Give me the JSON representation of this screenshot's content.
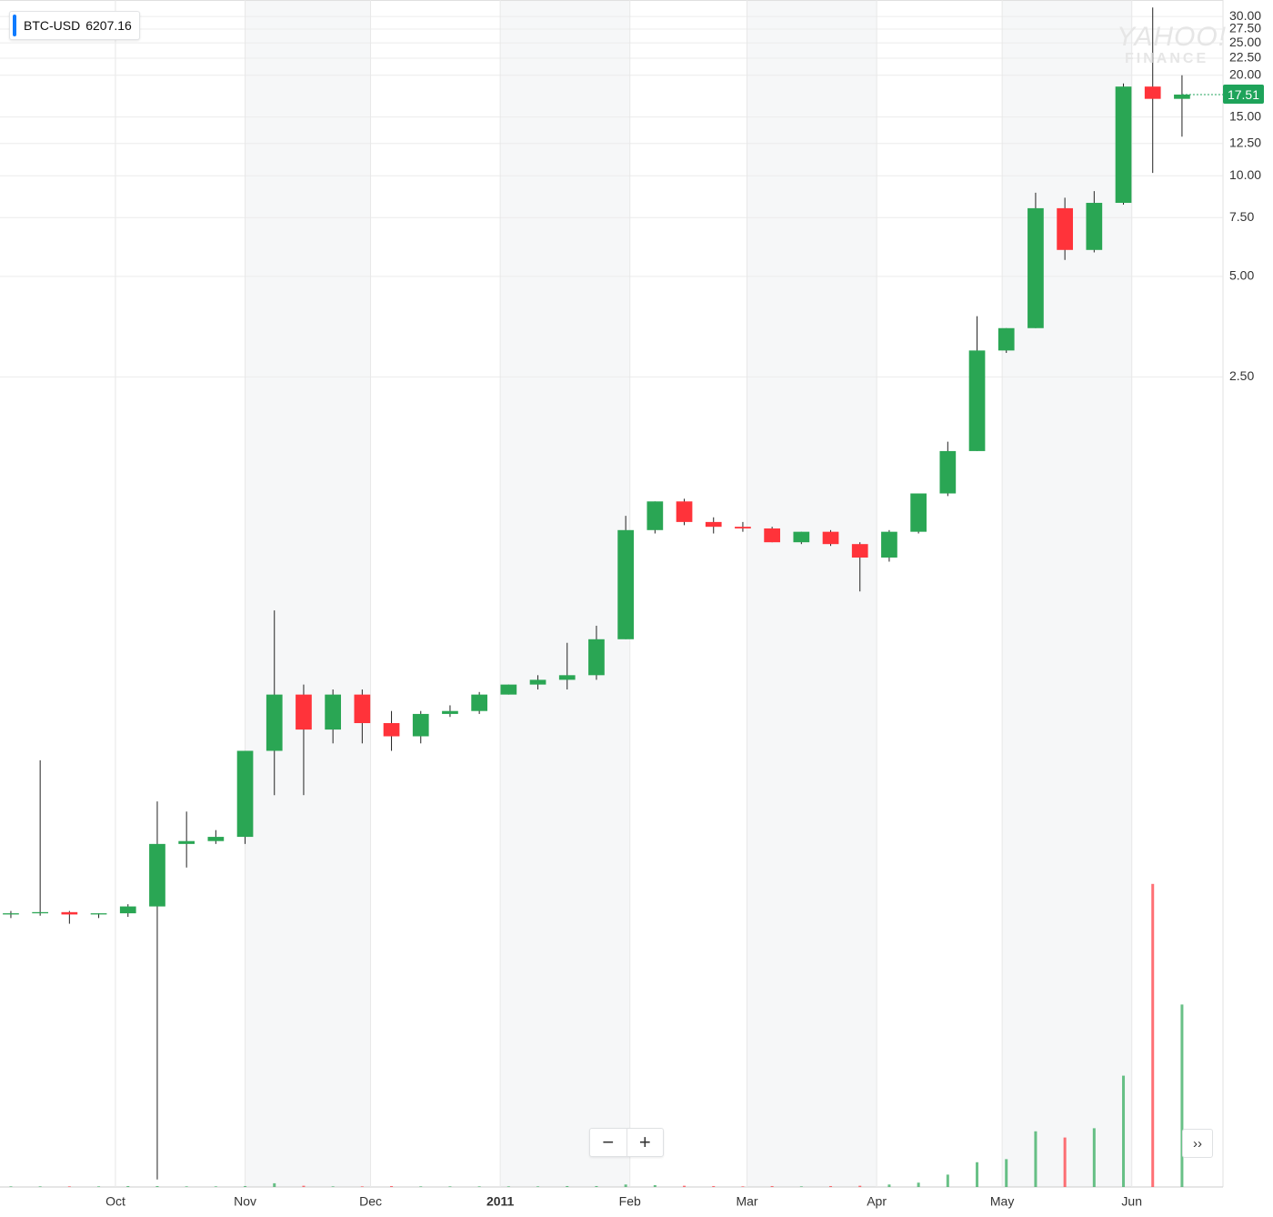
{
  "chart_data": {
    "type": "candlestick",
    "symbol": "BTC-USD",
    "symbol_value": "6207.16",
    "watermark": [
      "YAHOO!",
      "FINANCE"
    ],
    "log_scale": true,
    "grid": true,
    "up_color": "#2aa654",
    "down_color": "#ff333a",
    "last_price": 17.51,
    "xlim": [
      -27.6,
      264.8
    ],
    "xticks": [
      {
        "value": 0,
        "label": "Oct"
      },
      {
        "value": 31,
        "label": "Nov"
      },
      {
        "value": 61,
        "label": "Dec"
      },
      {
        "value": 92,
        "label": "2011"
      },
      {
        "value": 123,
        "label": "Feb"
      },
      {
        "value": 151,
        "label": "Mar"
      },
      {
        "value": 182,
        "label": "Apr"
      },
      {
        "value": 212,
        "label": "May"
      },
      {
        "value": 243,
        "label": "Jun"
      }
    ],
    "ylim": [
      0.0094,
      33.6
    ],
    "yticks": [
      {
        "value": 30,
        "label": "30.00"
      },
      {
        "value": 27.5,
        "label": "27.50"
      },
      {
        "value": 25,
        "label": "25.00"
      },
      {
        "value": 22.5,
        "label": "22.50"
      },
      {
        "value": 20,
        "label": "20.00"
      },
      {
        "value": 15,
        "label": "15.00"
      },
      {
        "value": 12.5,
        "label": "12.50"
      },
      {
        "value": 10,
        "label": "10.00"
      },
      {
        "value": 7.5,
        "label": "7.50"
      },
      {
        "value": 5,
        "label": "5.00"
      },
      {
        "value": 2.5,
        "label": "2.50"
      }
    ],
    "vlim": [
      0,
      1000
    ],
    "x": [
      -25,
      -18,
      -11,
      -4,
      3,
      10,
      17,
      24,
      31,
      38,
      45,
      52,
      59,
      66,
      73,
      80,
      87,
      94,
      101,
      108,
      115,
      122,
      129,
      136,
      143,
      150,
      157,
      164,
      171,
      178,
      185,
      192,
      199,
      206,
      213,
      220,
      227,
      234,
      241,
      248,
      255
    ],
    "open": [
      0.0615,
      0.062,
      0.0625,
      0.0615,
      0.062,
      0.065,
      0.1,
      0.102,
      0.105,
      0.19,
      0.28,
      0.22,
      0.28,
      0.23,
      0.21,
      0.245,
      0.25,
      0.28,
      0.3,
      0.31,
      0.32,
      0.41,
      0.87,
      1.06,
      0.92,
      0.89,
      0.88,
      0.8,
      0.86,
      0.79,
      0.72,
      0.86,
      1.12,
      1.5,
      3.0,
      3.5,
      8.0,
      6.0,
      8.3,
      18.5,
      17.0
    ],
    "high": [
      0.063,
      0.178,
      0.063,
      0.062,
      0.066,
      0.134,
      0.125,
      0.11,
      0.19,
      0.5,
      0.3,
      0.29,
      0.29,
      0.25,
      0.25,
      0.26,
      0.285,
      0.3,
      0.32,
      0.4,
      0.45,
      0.96,
      1.06,
      1.08,
      0.95,
      0.92,
      0.89,
      0.86,
      0.87,
      0.8,
      0.87,
      1.12,
      1.6,
      3.8,
      3.5,
      8.9,
      8.6,
      9.0,
      18.9,
      31.9,
      20
    ],
    "low": [
      0.06,
      0.061,
      0.0577,
      0.06,
      0.0605,
      0.0099,
      0.085,
      0.1,
      0.1,
      0.14,
      0.14,
      0.2,
      0.2,
      0.19,
      0.2,
      0.24,
      0.245,
      0.28,
      0.29,
      0.29,
      0.31,
      0.41,
      0.85,
      0.9,
      0.85,
      0.86,
      0.8,
      0.79,
      0.78,
      0.57,
      0.7,
      0.85,
      1.1,
      1.5,
      2.95,
      3.5,
      5.6,
      5.9,
      8.2,
      10.2,
      13.1
    ],
    "close": [
      0.062,
      0.0625,
      0.0615,
      0.062,
      0.065,
      0.1,
      0.102,
      0.105,
      0.19,
      0.28,
      0.22,
      0.28,
      0.23,
      0.21,
      0.245,
      0.25,
      0.28,
      0.3,
      0.31,
      0.32,
      0.41,
      0.87,
      1.06,
      0.92,
      0.89,
      0.88,
      0.8,
      0.86,
      0.79,
      0.72,
      0.86,
      1.12,
      1.5,
      3.0,
      3.5,
      8.0,
      6.0,
      8.3,
      18.5,
      17.0,
      17.51
    ],
    "volume": [
      2,
      2,
      2,
      2,
      3,
      3,
      2,
      2,
      3,
      12,
      4,
      2,
      2,
      3,
      2,
      2,
      2,
      2,
      2,
      3,
      3,
      8,
      6,
      4,
      3,
      2,
      3,
      2,
      3,
      4,
      8,
      14,
      40,
      80,
      90,
      180,
      160,
      190,
      360,
      980,
      590
    ]
  }
}
